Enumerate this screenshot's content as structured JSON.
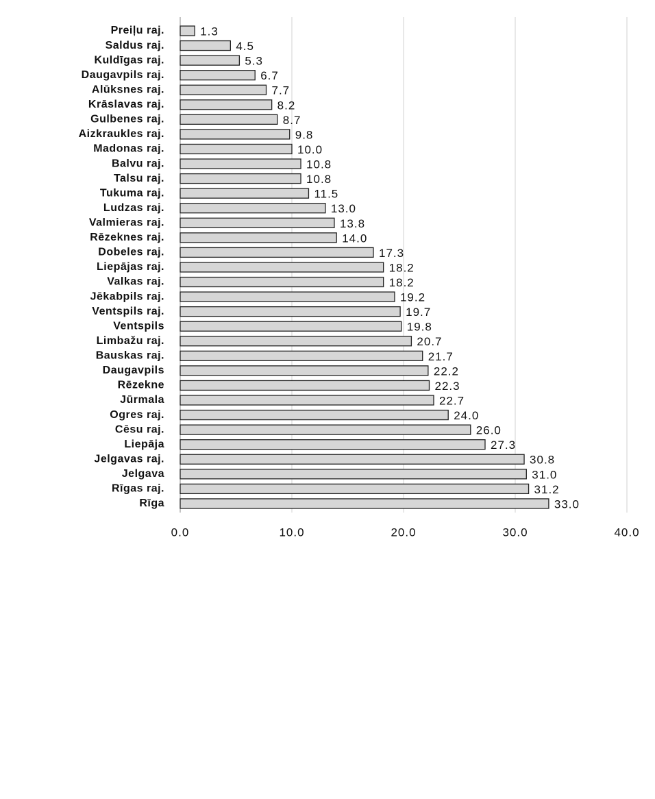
{
  "chart_data": {
    "type": "barh",
    "categories": [
      "Preiļu raj.",
      "Saldus raj.",
      "Kuldīgas raj.",
      "Daugavpils raj.",
      "Alūksnes raj.",
      "Krāslavas raj.",
      "Gulbenes raj.",
      "Aizkraukles raj.",
      "Madonas raj.",
      "Balvu raj.",
      "Talsu raj.",
      "Tukuma raj.",
      "Ludzas raj.",
      "Valmieras raj.",
      "Rēzeknes raj.",
      "Dobeles raj.",
      "Liepājas raj.",
      "Valkas raj.",
      "Jēkabpils raj.",
      "Ventspils raj.",
      "Ventspils",
      "Limbažu raj.",
      "Bauskas raj.",
      "Daugavpils",
      "Rēzekne",
      "Jūrmala",
      "Ogres raj.",
      "Cēsu raj.",
      "Liepāja",
      "Jelgavas raj.",
      "Jelgava",
      "Rīgas raj.",
      "Rīga"
    ],
    "values": [
      1.3,
      4.5,
      5.3,
      6.7,
      7.7,
      8.2,
      8.7,
      9.8,
      10.0,
      10.8,
      10.8,
      11.5,
      13.0,
      13.8,
      14.0,
      17.3,
      18.2,
      18.2,
      19.2,
      19.7,
      19.8,
      20.7,
      21.7,
      22.2,
      22.3,
      22.7,
      24.0,
      26.0,
      27.3,
      30.8,
      31.0,
      31.2,
      33.0
    ],
    "value_labels": [
      "1.3",
      "4.5",
      "5.3",
      "6.7",
      "7.7",
      "8.2",
      "8.7",
      "9.8",
      "10.0",
      "10.8",
      "10.8",
      "11.5",
      "13.0",
      "13.8",
      "14.0",
      "17.3",
      "18.2",
      "18.2",
      "19.2",
      "19.7",
      "19.8",
      "20.7",
      "21.7",
      "22.2",
      "22.3",
      "22.7",
      "24.0",
      "26.0",
      "27.3",
      "30.8",
      "31.0",
      "31.2",
      "33.0"
    ],
    "color": "#d6d6d6",
    "xlim": [
      0,
      40
    ],
    "xticks": [
      {
        "value": 0,
        "label": "0.0"
      },
      {
        "value": 10,
        "label": "10.0"
      },
      {
        "value": 20,
        "label": "20.0"
      },
      {
        "value": 30,
        "label": "30.0"
      },
      {
        "value": 40,
        "label": "40.0"
      }
    ],
    "grid": true
  }
}
